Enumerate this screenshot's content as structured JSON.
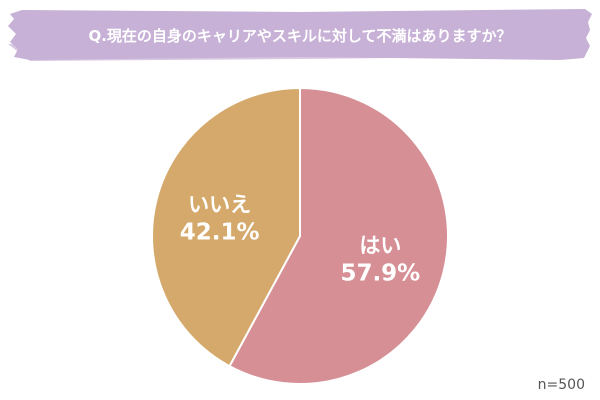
{
  "header": {
    "question": "Q.現在の自身のキャリアやスキルに対して不満はありますか？",
    "banner_color": "#c7b1d6"
  },
  "chart_data": {
    "type": "pie",
    "categories": [
      "はい",
      "いいえ"
    ],
    "values": [
      57.9,
      42.1
    ],
    "value_labels": [
      "57.9%",
      "42.1%"
    ],
    "colors": [
      "#d58f95",
      "#d4a96b"
    ],
    "start_angle": "12 o'clock, clockwise",
    "legend": "none (labels on slices)",
    "sample_size": "n=500"
  }
}
